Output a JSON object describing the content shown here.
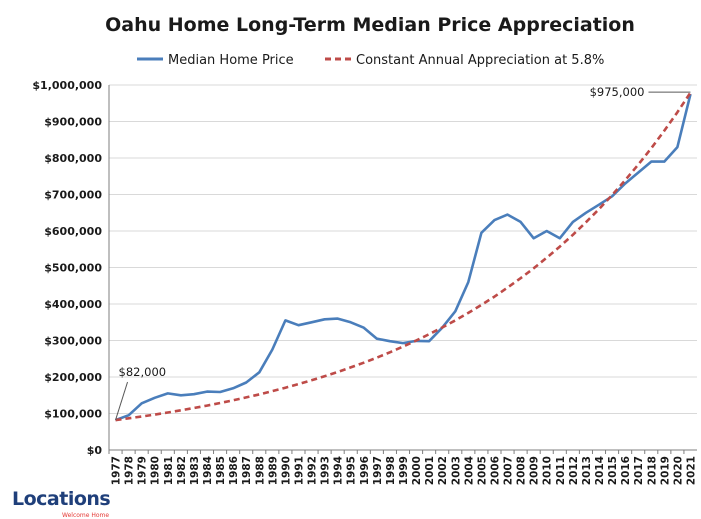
{
  "chart_data": {
    "type": "line",
    "title": "Oahu Home Long-Term Median Price Appreciation",
    "xlabel": "",
    "ylabel": "",
    "ylim": [
      0,
      1000000
    ],
    "yticks": [
      0,
      100000,
      200000,
      300000,
      400000,
      500000,
      600000,
      700000,
      800000,
      900000,
      1000000
    ],
    "ytick_labels": [
      "$0",
      "$100,000",
      "$200,000",
      "$300,000",
      "$400,000",
      "$500,000",
      "$600,000",
      "$700,000",
      "$800,000",
      "$900,000",
      "$1,000,000"
    ],
    "grid": true,
    "legend_position": "top",
    "categories": [
      "1977",
      "1978",
      "1979",
      "1980",
      "1981",
      "1982",
      "1983",
      "1984",
      "1985",
      "1986",
      "1987",
      "1988",
      "1989",
      "1990",
      "1991",
      "1992",
      "1993",
      "1994",
      "1995",
      "1996",
      "1997",
      "1998",
      "1999",
      "2000",
      "2001",
      "2002",
      "2003",
      "2004",
      "2005",
      "2006",
      "2007",
      "2008",
      "2009",
      "2010",
      "2011",
      "2012",
      "2013",
      "2014",
      "2015",
      "2016",
      "2017",
      "2018",
      "2019",
      "2020",
      "2021"
    ],
    "series": [
      {
        "name": "Median Home Price",
        "style": "solid",
        "color": "#4a7ebb",
        "values": [
          82000,
          95000,
          128000,
          143000,
          155000,
          150000,
          153000,
          160000,
          159000,
          169000,
          185000,
          213000,
          275000,
          355000,
          342000,
          350000,
          358000,
          360000,
          350000,
          335000,
          305000,
          298000,
          293000,
          299000,
          298000,
          335000,
          380000,
          460000,
          595000,
          630000,
          645000,
          625000,
          580000,
          600000,
          580000,
          625000,
          650000,
          672000,
          695000,
          730000,
          760000,
          790000,
          790000,
          830000,
          975000
        ]
      },
      {
        "name": "Constant Annual Appreciation at 5.8%",
        "style": "dashed",
        "color": "#be4b48",
        "values": [
          82000,
          86800,
          91800,
          97100,
          102700,
          108700,
          115000,
          121700,
          128700,
          136200,
          144100,
          152400,
          161300,
          170600,
          180500,
          191000,
          202100,
          213800,
          226200,
          239300,
          253200,
          267800,
          283400,
          299800,
          317200,
          335600,
          355000,
          375600,
          397400,
          420400,
          444800,
          470600,
          497900,
          526800,
          557300,
          589600,
          623800,
          660000,
          698300,
          738800,
          781600,
          826900,
          874900,
          925600,
          979300
        ]
      }
    ],
    "annotations": [
      {
        "text": "$82,000",
        "x": "1977",
        "y": 82000
      },
      {
        "text": "$975,000",
        "x": "2021",
        "y": 975000
      }
    ]
  },
  "logo": {
    "word": "Locations",
    "tagline": "Welcome Home"
  }
}
